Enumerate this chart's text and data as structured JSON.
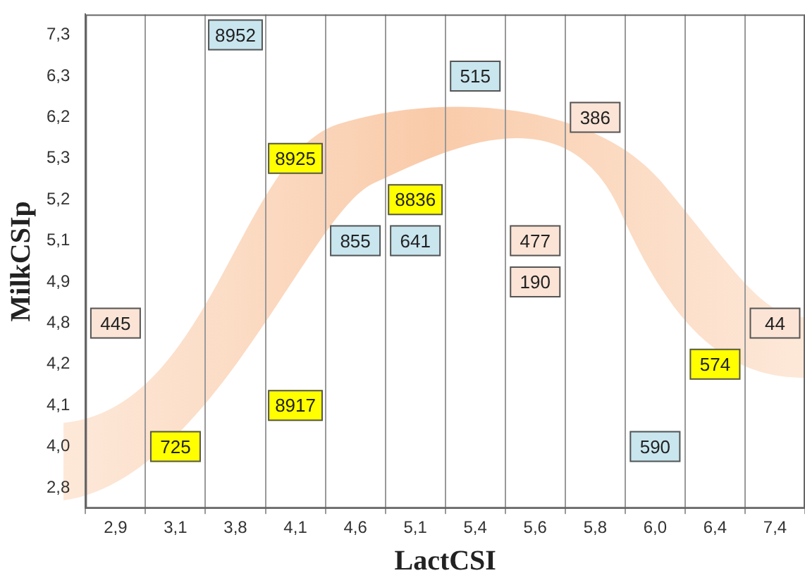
{
  "chart_data": {
    "type": "heatmap",
    "xlabel": "LactCSI",
    "ylabel": "MilkCSIp",
    "categories": [
      "2,9",
      "3,1",
      "3,8",
      "4,1",
      "4,6",
      "5,1",
      "5,4",
      "5,6",
      "5,8",
      "6,0",
      "6,4",
      "7,4"
    ],
    "y_categories": [
      "7,3",
      "6,3",
      "6,2",
      "5,3",
      "5,2",
      "5,1",
      "4,9",
      "4,8",
      "4,2",
      "4,1",
      "4,0",
      "2,8"
    ],
    "cells": [
      [
        null,
        null,
        8952,
        null,
        null,
        null,
        null,
        null,
        null,
        null,
        null,
        null
      ],
      [
        null,
        null,
        null,
        null,
        null,
        null,
        515,
        null,
        null,
        null,
        null,
        null
      ],
      [
        null,
        null,
        null,
        null,
        null,
        null,
        null,
        null,
        386,
        null,
        null,
        null
      ],
      [
        null,
        null,
        null,
        8925,
        null,
        null,
        null,
        null,
        null,
        null,
        null,
        null
      ],
      [
        null,
        null,
        null,
        null,
        null,
        8836,
        null,
        null,
        null,
        null,
        null,
        null
      ],
      [
        null,
        null,
        null,
        null,
        855,
        641,
        null,
        477,
        null,
        null,
        null,
        null
      ],
      [
        null,
        null,
        null,
        null,
        null,
        null,
        null,
        190,
        null,
        null,
        null,
        null
      ],
      [
        445,
        null,
        null,
        null,
        null,
        null,
        null,
        null,
        null,
        null,
        null,
        44
      ],
      [
        null,
        null,
        null,
        null,
        null,
        null,
        null,
        null,
        null,
        null,
        574,
        null
      ],
      [
        null,
        null,
        null,
        8917,
        null,
        null,
        null,
        null,
        null,
        null,
        null,
        null
      ],
      [
        null,
        725,
        null,
        null,
        null,
        null,
        null,
        null,
        null,
        590,
        null,
        null
      ],
      [
        null,
        null,
        null,
        null,
        null,
        null,
        null,
        null,
        null,
        null,
        null,
        null
      ]
    ],
    "colors": [
      [
        null,
        null,
        "#c9e6ef",
        null,
        null,
        null,
        null,
        null,
        null,
        null,
        null,
        null
      ],
      [
        null,
        null,
        null,
        null,
        null,
        null,
        "#c9e6ef",
        null,
        null,
        null,
        null,
        null
      ],
      [
        null,
        null,
        null,
        null,
        null,
        null,
        null,
        null,
        "#fbe4d6",
        null,
        null,
        null
      ],
      [
        null,
        null,
        null,
        "#ffff00",
        null,
        null,
        null,
        null,
        null,
        null,
        null,
        null
      ],
      [
        null,
        null,
        null,
        null,
        null,
        "#ffff00",
        null,
        null,
        null,
        null,
        null,
        null
      ],
      [
        null,
        null,
        null,
        null,
        "#c9e6ef",
        "#c9e6ef",
        null,
        "#fbe4d6",
        null,
        null,
        null,
        null
      ],
      [
        null,
        null,
        null,
        null,
        null,
        null,
        null,
        "#fbe4d6",
        null,
        null,
        null,
        null
      ],
      [
        "#fbe4d6",
        null,
        null,
        null,
        null,
        null,
        null,
        null,
        null,
        null,
        null,
        "#fbe4d6"
      ],
      [
        null,
        null,
        null,
        null,
        null,
        null,
        null,
        null,
        null,
        null,
        "#ffff00",
        null
      ],
      [
        null,
        null,
        null,
        "#ffff00",
        null,
        null,
        null,
        null,
        null,
        null,
        null,
        null
      ],
      [
        null,
        "#ffff00",
        null,
        null,
        null,
        null,
        null,
        null,
        null,
        "#c9e6ef",
        null,
        null
      ],
      [
        null,
        null,
        null,
        null,
        null,
        null,
        null,
        null,
        null,
        null,
        null,
        null
      ]
    ],
    "grid": "x",
    "data_labels": true
  }
}
